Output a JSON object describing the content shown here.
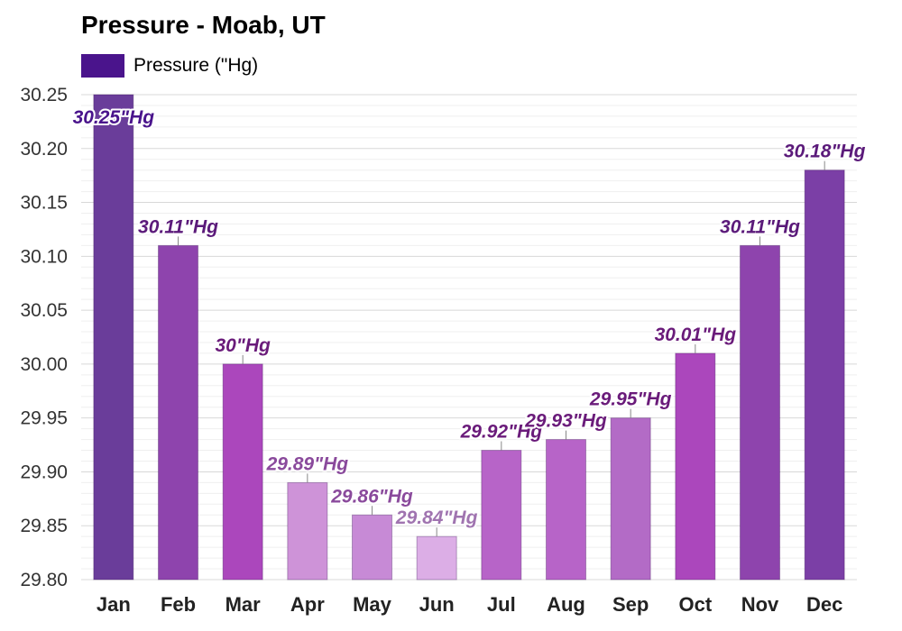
{
  "title": "Pressure - Moab, UT",
  "legend": {
    "label": "Pressure (\"Hg)",
    "color": "#4a148c"
  },
  "chart_data": {
    "type": "bar",
    "title": "Pressure - Moab, UT",
    "xlabel": "",
    "ylabel": "",
    "categories": [
      "Jan",
      "Feb",
      "Mar",
      "Apr",
      "May",
      "Jun",
      "Jul",
      "Aug",
      "Sep",
      "Oct",
      "Nov",
      "Dec"
    ],
    "series": [
      {
        "name": "Pressure (\"Hg)",
        "values": [
          30.25,
          30.11,
          30.0,
          29.89,
          29.86,
          29.84,
          29.92,
          29.93,
          29.95,
          30.01,
          30.11,
          30.18
        ],
        "value_labels": [
          "30.25\"Hg",
          "30.11\"Hg",
          "30\"Hg",
          "29.89\"Hg",
          "29.86\"Hg",
          "29.84\"Hg",
          "29.92\"Hg",
          "29.93\"Hg",
          "29.95\"Hg",
          "30.01\"Hg",
          "30.11\"Hg",
          "30.18\"Hg"
        ],
        "colors": [
          "#6a3d9a",
          "#8e44ad",
          "#ab47bc",
          "#ce93d8",
          "#c78ad6",
          "#dcaee6",
          "#b764c8",
          "#b764c8",
          "#b36bc6",
          "#ab47bc",
          "#8e44ad",
          "#7b3fa6"
        ],
        "label_colors": [
          "#4a148c",
          "#5b1a7a",
          "#6a1b7a",
          "#8a4a9c",
          "#8a4a9c",
          "#a074b0",
          "#6a1b7a",
          "#6a1b7a",
          "#6a1b7a",
          "#6a1b7a",
          "#5b1a7a",
          "#5b1a7a"
        ]
      }
    ],
    "ylim": [
      29.8,
      30.25
    ],
    "yticks": [
      "30.25",
      "30.20",
      "30.15",
      "30.10",
      "30.05",
      "30.00",
      "29.95",
      "29.90",
      "29.85",
      "29.80"
    ],
    "grid": true,
    "legend_position": "top-left"
  }
}
